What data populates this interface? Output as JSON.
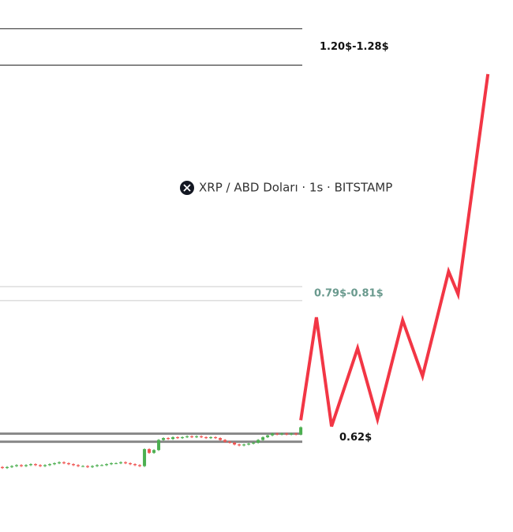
{
  "chart_data": {
    "type": "candlestick",
    "title": "XRP / ABD Doları · 1s · BITSTAMP",
    "log_scale": true,
    "xlim": [
      -0.5,
      107.8
    ],
    "ylim": [
      0.524,
      1.347
    ],
    "up_color": "#4caf50",
    "down_color": "#ef5350",
    "open": [
      0.588,
      0.587,
      0.588,
      0.589,
      0.59,
      0.589,
      0.59,
      0.591,
      0.59,
      0.589,
      0.59,
      0.591,
      0.592,
      0.593,
      0.592,
      0.591,
      0.59,
      0.589,
      0.589,
      0.588,
      0.589,
      0.59,
      0.59,
      0.591,
      0.592,
      0.592,
      0.593,
      0.592,
      0.591,
      0.59,
      0.589,
      0.607,
      0.603,
      0.606,
      0.617,
      0.619,
      0.618,
      0.62,
      0.619,
      0.62,
      0.621,
      0.62,
      0.621,
      0.62,
      0.619,
      0.62,
      0.619,
      0.617,
      0.615,
      0.614,
      0.612,
      0.611,
      0.612,
      0.613,
      0.614,
      0.617,
      0.62,
      0.622,
      0.624,
      0.623,
      0.624,
      0.623,
      0.624,
      0.623
    ],
    "high": [
      0.589,
      0.589,
      0.59,
      0.591,
      0.591,
      0.591,
      0.592,
      0.592,
      0.591,
      0.591,
      0.592,
      0.593,
      0.594,
      0.594,
      0.593,
      0.592,
      0.591,
      0.59,
      0.59,
      0.59,
      0.591,
      0.591,
      0.592,
      0.593,
      0.593,
      0.594,
      0.594,
      0.593,
      0.592,
      0.591,
      0.608,
      0.608,
      0.607,
      0.618,
      0.62,
      0.62,
      0.621,
      0.621,
      0.621,
      0.622,
      0.622,
      0.622,
      0.622,
      0.621,
      0.621,
      0.621,
      0.62,
      0.618,
      0.616,
      0.615,
      0.613,
      0.613,
      0.614,
      0.615,
      0.618,
      0.621,
      0.623,
      0.625,
      0.625,
      0.625,
      0.625,
      0.625,
      0.625,
      0.632
    ],
    "low": [
      0.586,
      0.586,
      0.587,
      0.588,
      0.588,
      0.588,
      0.589,
      0.589,
      0.588,
      0.588,
      0.589,
      0.59,
      0.591,
      0.591,
      0.59,
      0.589,
      0.588,
      0.588,
      0.587,
      0.587,
      0.588,
      0.589,
      0.589,
      0.59,
      0.591,
      0.591,
      0.591,
      0.59,
      0.589,
      0.588,
      0.588,
      0.602,
      0.602,
      0.605,
      0.616,
      0.617,
      0.617,
      0.618,
      0.618,
      0.619,
      0.619,
      0.619,
      0.619,
      0.618,
      0.618,
      0.618,
      0.616,
      0.614,
      0.613,
      0.611,
      0.61,
      0.61,
      0.611,
      0.612,
      0.613,
      0.616,
      0.619,
      0.621,
      0.622,
      0.622,
      0.622,
      0.622,
      0.622,
      0.622
    ],
    "close": [
      0.587,
      0.588,
      0.589,
      0.59,
      0.589,
      0.59,
      0.591,
      0.59,
      0.589,
      0.59,
      0.591,
      0.592,
      0.593,
      0.592,
      0.591,
      0.59,
      0.589,
      0.589,
      0.588,
      0.589,
      0.59,
      0.59,
      0.591,
      0.592,
      0.592,
      0.593,
      0.592,
      0.591,
      0.59,
      0.589,
      0.607,
      0.603,
      0.606,
      0.617,
      0.619,
      0.618,
      0.62,
      0.619,
      0.62,
      0.621,
      0.62,
      0.621,
      0.62,
      0.619,
      0.62,
      0.619,
      0.617,
      0.615,
      0.614,
      0.612,
      0.611,
      0.612,
      0.613,
      0.614,
      0.617,
      0.62,
      0.622,
      0.624,
      0.623,
      0.624,
      0.623,
      0.624,
      0.623,
      0.631
    ],
    "projection": {
      "color": "#f23645",
      "x": [
        63,
        66.3,
        69.5,
        75,
        79.2,
        84.5,
        88.7,
        94.2,
        96.2,
        102.5
      ],
      "values": [
        0.639,
        0.767,
        0.632,
        0.726,
        0.64,
        0.763,
        0.691,
        0.832,
        0.799,
        1.181
      ]
    },
    "levels": [
      {
        "label": "1.20$-1.28$",
        "low": 1.2,
        "high": 1.28,
        "line_color": "#222222",
        "label_color": "#111111"
      },
      {
        "label": "0.79$-0.81$",
        "low": 0.79,
        "high": 0.81,
        "line_color": "#cccccc",
        "label_color": "#6a9a8e"
      },
      {
        "label": "0.62$",
        "low": 0.615,
        "high": 0.624,
        "line_color": "#888888",
        "label_color": "#111111"
      }
    ]
  }
}
